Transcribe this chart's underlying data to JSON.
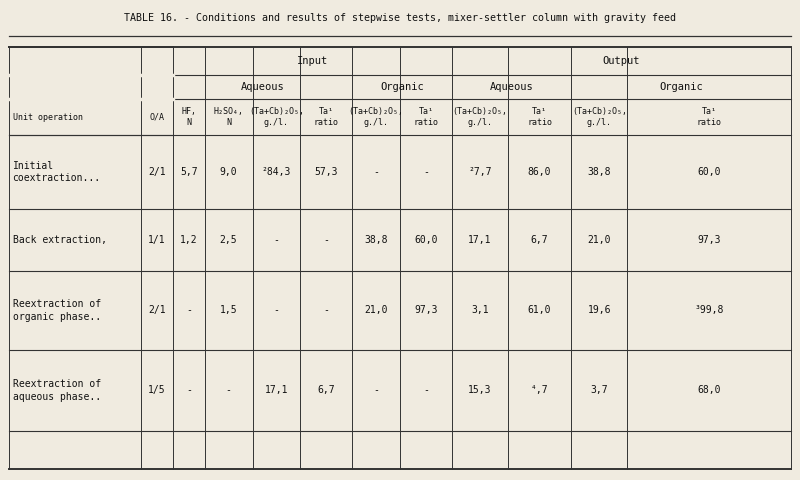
{
  "title": "TABLE 16. - Conditions and results of stepwise tests, mixer-settler column with gravity feed",
  "background_color": "#f0ebe0",
  "text_color": "#111111",
  "vlines": [
    0.01,
    0.175,
    0.215,
    0.255,
    0.315,
    0.375,
    0.44,
    0.5,
    0.565,
    0.635,
    0.715,
    0.785,
    0.99
  ],
  "hlines": [
    0.905,
    0.845,
    0.795,
    0.72,
    0.565,
    0.435,
    0.27,
    0.1,
    0.02
  ],
  "rows": [
    {
      "label": "Initial\ncoextraction...",
      "oa": "2/1",
      "hf": "5,7",
      "h2so4": "9,0",
      "aq_ta_cb": "²84,3",
      "aq_ta_ratio": "57,3",
      "org_in_ta_cb": "-",
      "org_in_ta_ratio": "-",
      "aq_out_ta_cb": "²7,7",
      "aq_out_ta_ratio": "86,0",
      "org_out_ta_cb": "38,8",
      "org_out_ta_ratio": "60,0"
    },
    {
      "label": "Back extraction,",
      "oa": "1/1",
      "hf": "1,2",
      "h2so4": "2,5",
      "aq_ta_cb": "-",
      "aq_ta_ratio": "-",
      "org_in_ta_cb": "38,8",
      "org_in_ta_ratio": "60,0",
      "aq_out_ta_cb": "17,1",
      "aq_out_ta_ratio": "6,7",
      "org_out_ta_cb": "21,0",
      "org_out_ta_ratio": "97,3"
    },
    {
      "label": "Reextraction of\norganic phase..",
      "oa": "2/1",
      "hf": "-",
      "h2so4": "1,5",
      "aq_ta_cb": "-",
      "aq_ta_ratio": "-",
      "org_in_ta_cb": "21,0",
      "org_in_ta_ratio": "97,3",
      "aq_out_ta_cb": "3,1",
      "aq_out_ta_ratio": "61,0",
      "org_out_ta_cb": "19,6",
      "org_out_ta_ratio": "³99,8"
    },
    {
      "label": "Reextraction of\naqueous phase..",
      "oa": "1/5",
      "hf": "-",
      "h2so4": "-",
      "aq_ta_cb": "17,1",
      "aq_ta_ratio": "6,7",
      "org_in_ta_cb": "-",
      "org_in_ta_ratio": "-",
      "aq_out_ta_cb": "15,3",
      "aq_out_ta_ratio": "⁴,7",
      "org_out_ta_cb": "3,7",
      "org_out_ta_ratio": "68,0"
    }
  ]
}
